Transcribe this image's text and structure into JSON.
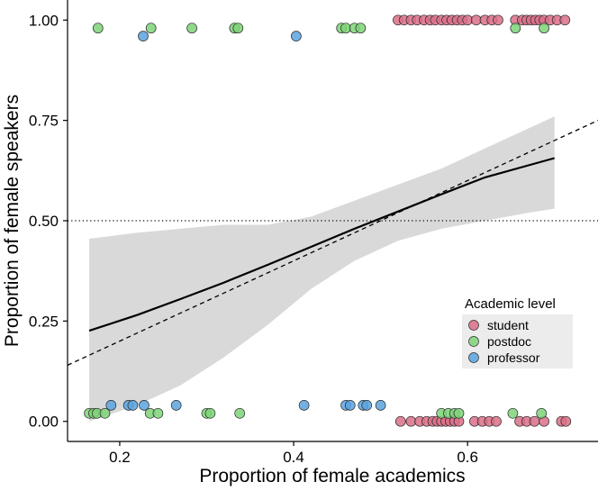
{
  "chart_data": {
    "type": "scatter",
    "title": "",
    "xlabel": "Proportion of female academics",
    "ylabel": "Proportion of female speakers",
    "xlim": [
      0.14,
      0.75
    ],
    "ylim": [
      -0.05,
      1.05
    ],
    "x_ticks": [
      {
        "value": 0.2,
        "label": "0.2"
      },
      {
        "value": 0.4,
        "label": "0.4"
      },
      {
        "value": 0.6,
        "label": "0.6"
      }
    ],
    "y_ticks": [
      {
        "value": 0.0,
        "label": "0.00"
      },
      {
        "value": 0.25,
        "label": "0.25"
      },
      {
        "value": 0.5,
        "label": "0.50"
      },
      {
        "value": 0.75,
        "label": "0.75"
      },
      {
        "value": 1.0,
        "label": "1.00"
      }
    ],
    "grid": false,
    "legend": {
      "title": "Academic level",
      "position": "bottom-right",
      "items": [
        {
          "key": "student",
          "label": "student",
          "color": "#DA6F87"
        },
        {
          "key": "postdoc",
          "label": "postdoc",
          "color": "#7ED378"
        },
        {
          "key": "professor",
          "label": "professor",
          "color": "#5AA3E0"
        }
      ]
    },
    "reference_lines": {
      "horizontal": {
        "y": 0.5,
        "style": "dotted"
      },
      "identity": {
        "x": [
          0.14,
          0.75
        ],
        "y": [
          0.14,
          0.75
        ],
        "style": "dashed"
      }
    },
    "fit": {
      "x": [
        0.165,
        0.22,
        0.27,
        0.32,
        0.37,
        0.42,
        0.47,
        0.52,
        0.57,
        0.62,
        0.67,
        0.7
      ],
      "y": [
        0.226,
        0.265,
        0.305,
        0.346,
        0.39,
        0.435,
        0.48,
        0.523,
        0.566,
        0.608,
        0.638,
        0.656
      ],
      "lower": [
        0.0,
        0.04,
        0.09,
        0.16,
        0.24,
        0.33,
        0.4,
        0.45,
        0.48,
        0.5,
        0.52,
        0.53
      ],
      "upper": [
        0.455,
        0.47,
        0.48,
        0.49,
        0.49,
        0.51,
        0.55,
        0.59,
        0.63,
        0.68,
        0.73,
        0.76
      ]
    },
    "series": [
      {
        "name": "student",
        "color": "#DA6F87",
        "points": [
          {
            "x": 0.52,
            "y": 1.0
          },
          {
            "x": 0.527,
            "y": 1.0
          },
          {
            "x": 0.535,
            "y": 1.0
          },
          {
            "x": 0.542,
            "y": 1.0
          },
          {
            "x": 0.55,
            "y": 1.0
          },
          {
            "x": 0.557,
            "y": 1.0
          },
          {
            "x": 0.563,
            "y": 1.0
          },
          {
            "x": 0.57,
            "y": 1.0
          },
          {
            "x": 0.576,
            "y": 1.0
          },
          {
            "x": 0.582,
            "y": 1.0
          },
          {
            "x": 0.588,
            "y": 1.0
          },
          {
            "x": 0.594,
            "y": 1.0
          },
          {
            "x": 0.6,
            "y": 1.0
          },
          {
            "x": 0.61,
            "y": 1.0
          },
          {
            "x": 0.62,
            "y": 1.0
          },
          {
            "x": 0.628,
            "y": 1.0
          },
          {
            "x": 0.635,
            "y": 1.0
          },
          {
            "x": 0.655,
            "y": 1.0
          },
          {
            "x": 0.663,
            "y": 1.0
          },
          {
            "x": 0.668,
            "y": 1.0
          },
          {
            "x": 0.673,
            "y": 1.0
          },
          {
            "x": 0.678,
            "y": 1.0
          },
          {
            "x": 0.683,
            "y": 1.0
          },
          {
            "x": 0.688,
            "y": 1.0
          },
          {
            "x": 0.695,
            "y": 1.0
          },
          {
            "x": 0.703,
            "y": 1.0
          },
          {
            "x": 0.712,
            "y": 1.0
          },
          {
            "x": 0.523,
            "y": 0.0
          },
          {
            "x": 0.535,
            "y": 0.0
          },
          {
            "x": 0.545,
            "y": 0.0
          },
          {
            "x": 0.553,
            "y": 0.0
          },
          {
            "x": 0.56,
            "y": 0.0
          },
          {
            "x": 0.565,
            "y": 0.0
          },
          {
            "x": 0.57,
            "y": 0.0
          },
          {
            "x": 0.575,
            "y": 0.0
          },
          {
            "x": 0.58,
            "y": 0.0
          },
          {
            "x": 0.585,
            "y": 0.0
          },
          {
            "x": 0.59,
            "y": 0.0
          },
          {
            "x": 0.608,
            "y": 0.0
          },
          {
            "x": 0.617,
            "y": 0.0
          },
          {
            "x": 0.625,
            "y": 0.0
          },
          {
            "x": 0.633,
            "y": 0.0
          },
          {
            "x": 0.66,
            "y": 0.0
          },
          {
            "x": 0.668,
            "y": 0.0
          },
          {
            "x": 0.677,
            "y": 0.0
          },
          {
            "x": 0.688,
            "y": 0.0
          },
          {
            "x": 0.708,
            "y": 0.0
          },
          {
            "x": 0.713,
            "y": 0.0
          }
        ]
      },
      {
        "name": "postdoc",
        "color": "#7ED378",
        "points": [
          {
            "x": 0.175,
            "y": 0.98
          },
          {
            "x": 0.236,
            "y": 0.98
          },
          {
            "x": 0.283,
            "y": 0.98
          },
          {
            "x": 0.332,
            "y": 0.98
          },
          {
            "x": 0.336,
            "y": 0.98
          },
          {
            "x": 0.455,
            "y": 0.98
          },
          {
            "x": 0.46,
            "y": 0.98
          },
          {
            "x": 0.47,
            "y": 0.98
          },
          {
            "x": 0.477,
            "y": 0.98
          },
          {
            "x": 0.655,
            "y": 0.98
          },
          {
            "x": 0.688,
            "y": 0.98
          },
          {
            "x": 0.165,
            "y": 0.02
          },
          {
            "x": 0.17,
            "y": 0.02
          },
          {
            "x": 0.174,
            "y": 0.02
          },
          {
            "x": 0.183,
            "y": 0.02
          },
          {
            "x": 0.235,
            "y": 0.02
          },
          {
            "x": 0.244,
            "y": 0.02
          },
          {
            "x": 0.3,
            "y": 0.02
          },
          {
            "x": 0.304,
            "y": 0.02
          },
          {
            "x": 0.338,
            "y": 0.02
          },
          {
            "x": 0.57,
            "y": 0.02
          },
          {
            "x": 0.578,
            "y": 0.02
          },
          {
            "x": 0.585,
            "y": 0.02
          },
          {
            "x": 0.59,
            "y": 0.02
          },
          {
            "x": 0.652,
            "y": 0.02
          },
          {
            "x": 0.685,
            "y": 0.02
          }
        ]
      },
      {
        "name": "professor",
        "color": "#5AA3E0",
        "points": [
          {
            "x": 0.227,
            "y": 0.96
          },
          {
            "x": 0.403,
            "y": 0.96
          },
          {
            "x": 0.19,
            "y": 0.04
          },
          {
            "x": 0.21,
            "y": 0.04
          },
          {
            "x": 0.215,
            "y": 0.04
          },
          {
            "x": 0.228,
            "y": 0.04
          },
          {
            "x": 0.265,
            "y": 0.04
          },
          {
            "x": 0.412,
            "y": 0.04
          },
          {
            "x": 0.46,
            "y": 0.04
          },
          {
            "x": 0.465,
            "y": 0.04
          },
          {
            "x": 0.48,
            "y": 0.04
          },
          {
            "x": 0.484,
            "y": 0.04
          },
          {
            "x": 0.5,
            "y": 0.04
          }
        ]
      }
    ]
  }
}
